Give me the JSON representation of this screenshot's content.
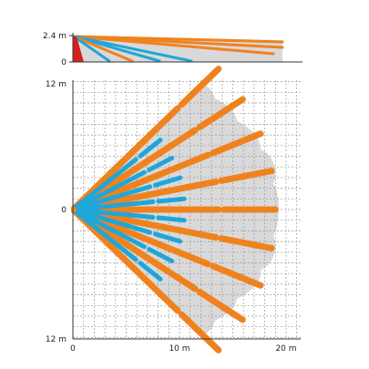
{
  "side_view": {
    "y_labels": [
      "2.4 m",
      "0"
    ],
    "height_m": 2.4
  },
  "top_view": {
    "y_labels": [
      "12 m",
      "0",
      "12 m"
    ],
    "x_labels": [
      "0",
      "10 m",
      "20 m"
    ],
    "x_range_m": [
      0,
      20
    ],
    "y_range_m": [
      -12,
      12
    ]
  },
  "colors": {
    "far_zone": "#f0821e",
    "near_zone": "#20a6d8",
    "coverage": "#d9d9d9",
    "grid": "#9a9a9a",
    "mount": "#d62020"
  },
  "beams": {
    "far_angles_deg": [
      -44,
      -33,
      -22,
      -11,
      0,
      11,
      22,
      33,
      44
    ],
    "far_range_m": 19.5,
    "near_angles_deg": [
      -38.5,
      -27.5,
      -16.5,
      -5.5,
      5.5,
      16.5,
      27.5,
      38.5
    ],
    "near_range_m": 11
  }
}
